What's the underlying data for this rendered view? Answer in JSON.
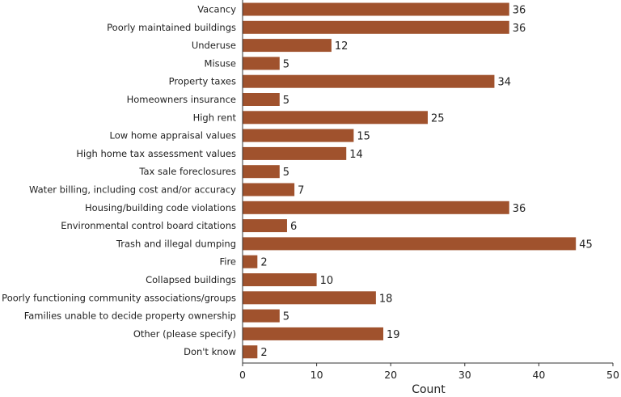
{
  "chart_data": {
    "type": "bar",
    "orientation": "horizontal",
    "categories": [
      "Vacancy",
      "Poorly maintained buildings",
      "Underuse",
      "Misuse",
      "Property taxes",
      "Homeowners insurance",
      "High rent",
      "Low home appraisal values",
      "High home tax assessment values",
      "Tax sale foreclosures",
      "Water billing, including cost and/or accuracy",
      "Housing/building code violations",
      "Environmental control board citations",
      "Trash and illegal dumping",
      "Fire",
      "Collapsed buildings",
      "Poorly functioning community associations/groups",
      "Families unable to decide property ownership",
      "Other (please specify)",
      "Don't know"
    ],
    "values": [
      36,
      36,
      12,
      5,
      34,
      5,
      25,
      15,
      14,
      5,
      7,
      36,
      6,
      45,
      2,
      10,
      18,
      5,
      19,
      2
    ],
    "value_labels": [
      "36",
      "36",
      "12",
      "5",
      "34",
      "5",
      "25",
      "15",
      "14",
      "5",
      "7",
      "36",
      "6",
      "45",
      "2",
      "10",
      "18",
      "5",
      "19",
      "2"
    ],
    "xlim": [
      0,
      50
    ],
    "xticks": [
      0,
      10,
      20,
      30,
      40,
      50
    ],
    "xtick_labels": [
      "0",
      "10",
      "20",
      "30",
      "40",
      "50"
    ],
    "xlabel": "Count",
    "ylabel": "",
    "title": "",
    "grid": false,
    "legend": "none",
    "bar_color": "#a0522d",
    "axis_color": "#333333"
  }
}
